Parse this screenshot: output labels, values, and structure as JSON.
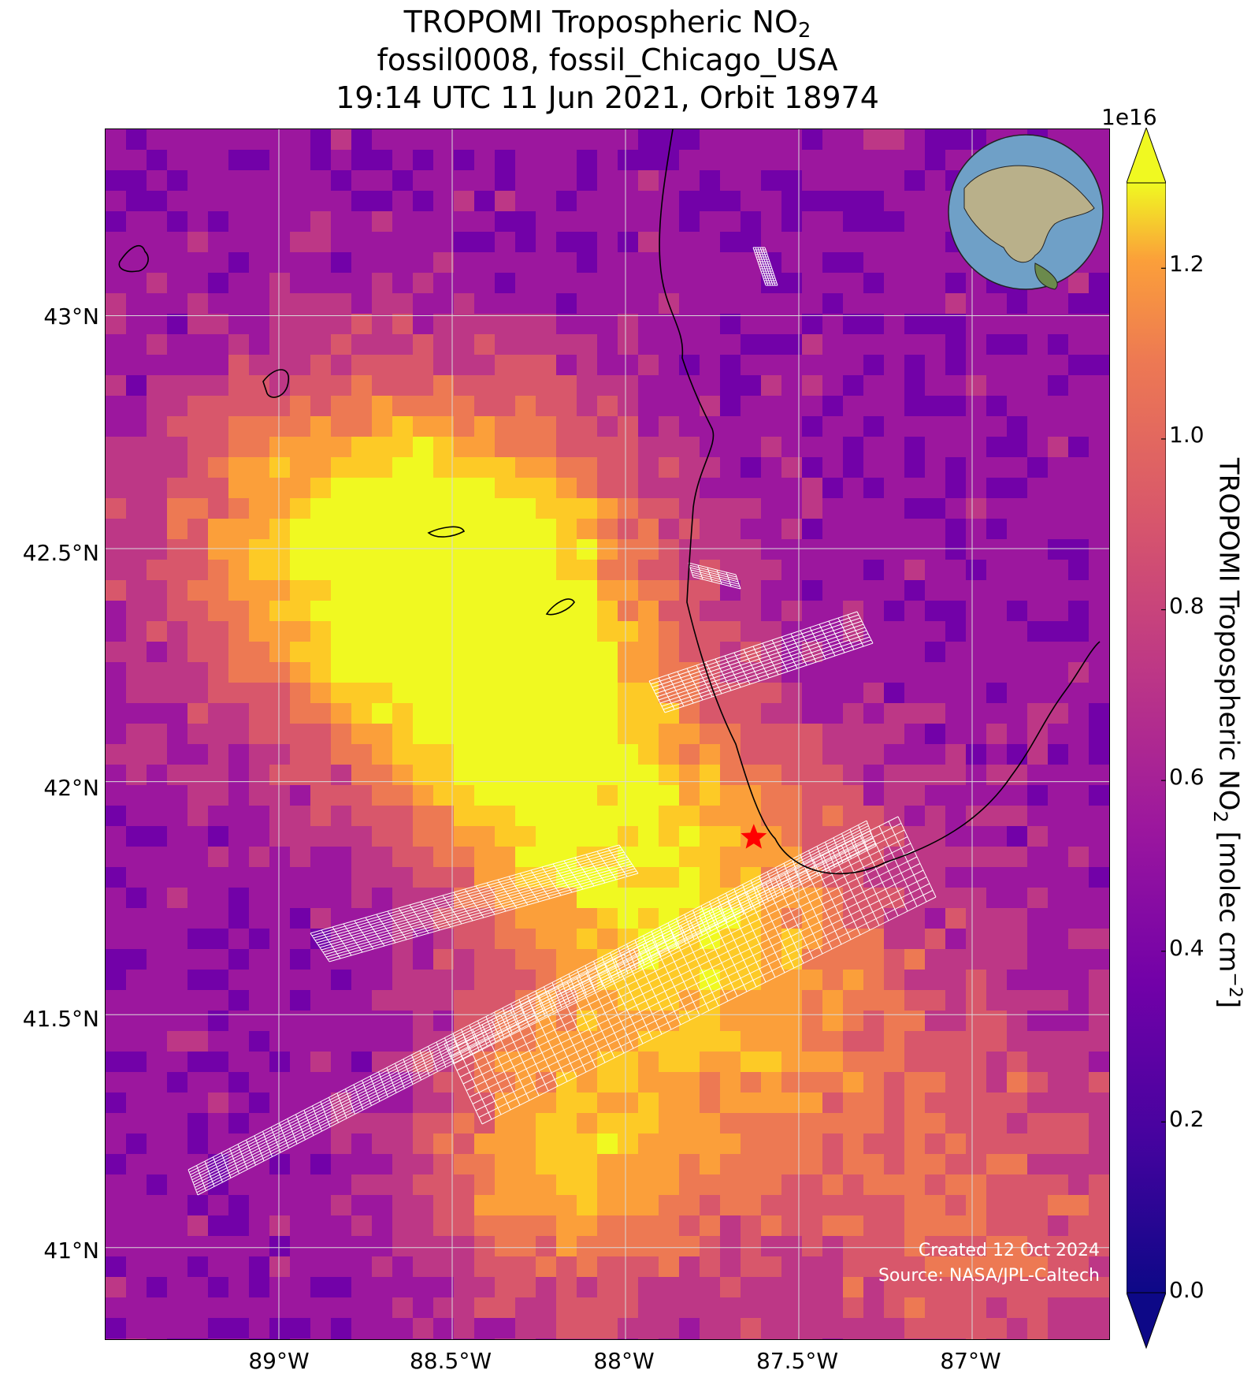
{
  "title": {
    "line1_main": "TROPOMI Tropospheric NO",
    "line1_sub": "2",
    "line2": "fossil0008, fossil_Chicago_USA",
    "line3": "19:14 UTC 11 Jun 2021, Orbit 18974"
  },
  "map": {
    "lat_ticks": [
      "43°N",
      "42.5°N",
      "42°N",
      "41.5°N",
      "41°N"
    ],
    "lon_ticks": [
      "89°W",
      "88.5°W",
      "88°W",
      "87.5°W",
      "87°W"
    ],
    "lat_values": [
      43.0,
      42.5,
      42.0,
      41.5,
      41.0
    ],
    "lon_values": [
      -89.0,
      -88.5,
      -88.0,
      -87.5,
      -87.0
    ],
    "lon_range": [
      -89.5,
      -86.6
    ],
    "lat_range": [
      40.8,
      43.4
    ],
    "target_marker": {
      "name": "fossil_Chicago_USA",
      "lon": -87.63,
      "lat": 41.88,
      "color": "#ff0000",
      "symbol": "star"
    },
    "inset_globe": "globe-icon",
    "colors": {
      "background": "#5a1aa6",
      "grid": "#d9d9d9",
      "coast": "#000000",
      "overlay": "#ffffff"
    }
  },
  "credits": {
    "line1": "Created 12 Oct 2024",
    "line2": "Source: NASA/JPL-Caltech"
  },
  "colorbar": {
    "colormap": "plasma",
    "exponent": "1e16",
    "ticks": [
      "0.0",
      "0.2",
      "0.4",
      "0.6",
      "0.8",
      "1.0",
      "1.2"
    ],
    "tick_values": [
      0.0,
      0.2,
      0.4,
      0.6,
      0.8,
      1.0,
      1.2
    ],
    "range": [
      0.0,
      1.3
    ],
    "label_main": "TROPOMI Tropospheric NO",
    "label_sub": "2",
    "label_unit": " [molec cm",
    "label_sup": "−2",
    "label_end": "]"
  }
}
